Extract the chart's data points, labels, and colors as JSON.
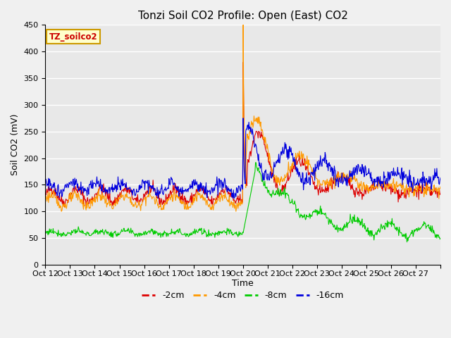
{
  "title": "Tonzi Soil CO2 Profile: Open (East) CO2",
  "ylabel": "Soil CO2 (mV)",
  "xlabel": "Time",
  "legend_label": "TZ_soilco2",
  "ylim": [
    0,
    450
  ],
  "yticks": [
    0,
    50,
    100,
    150,
    200,
    250,
    300,
    350,
    400,
    450
  ],
  "x_tick_labels": [
    "Oct 12",
    "Oct 13",
    "Oct 14",
    "Oct 15",
    "Oct 16",
    "Oct 17",
    "Oct 18",
    "Oct 19",
    "Oct 20",
    "Oct 21",
    "Oct 22",
    "Oct 23",
    "Oct 24",
    "Oct 25",
    "Oct 26",
    "Oct 27"
  ],
  "series_colors": {
    "-2cm": "#dd0000",
    "-4cm": "#ff9900",
    "-8cm": "#00cc00",
    "-16cm": "#0000dd"
  },
  "series_labels": [
    "-2cm",
    "-4cm",
    "-8cm",
    "-16cm"
  ],
  "fig_bg_color": "#f0f0f0",
  "plot_bg_color": "#e8e8e8",
  "grid_color": "#ffffff",
  "title_fontsize": 11,
  "axis_fontsize": 9,
  "tick_fontsize": 8,
  "legend_box_color": "#ffffcc",
  "legend_box_edge": "#cc9900",
  "n_days": 16,
  "pts_per_day": 48,
  "rain_day": 8
}
